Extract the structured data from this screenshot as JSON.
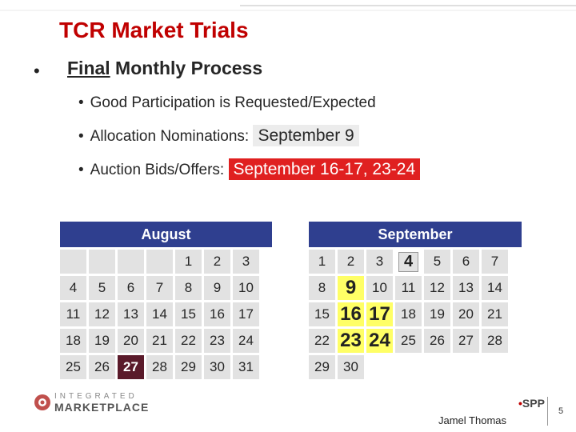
{
  "title": "TCR Market Trials",
  "heading": {
    "underlined": "Final",
    "rest": " Monthly Process"
  },
  "bullets": {
    "b1": "Good Participation is Requested/Expected",
    "b2_label": "Allocation Nominations:",
    "b2_value": "September 9",
    "b3_label": "Auction Bids/Offers:",
    "b3_value": "September 16-17, 23-24"
  },
  "august": {
    "title": "August",
    "rows": [
      [
        "",
        "",
        "",
        "",
        "1",
        "2",
        "3"
      ],
      [
        "4",
        "5",
        "6",
        "7",
        "8",
        "9",
        "10"
      ],
      [
        "11",
        "12",
        "13",
        "14",
        "15",
        "16",
        "17"
      ],
      [
        "18",
        "19",
        "20",
        "21",
        "22",
        "23",
        "24"
      ],
      [
        "25",
        "26",
        "27",
        "28",
        "29",
        "30",
        "31"
      ]
    ]
  },
  "september": {
    "title": "September",
    "rows": [
      [
        "1",
        "2",
        "3",
        "4",
        "5",
        "6",
        "7"
      ],
      [
        "8",
        "9",
        "10",
        "11",
        "12",
        "13",
        "14"
      ],
      [
        "15",
        "16",
        "17",
        "18",
        "19",
        "20",
        "21"
      ],
      [
        "22",
        "23",
        "24",
        "25",
        "26",
        "27",
        "28"
      ],
      [
        "29",
        "30",
        "",
        "",
        "",
        "",
        ""
      ]
    ]
  },
  "footer": {
    "logo_top": "INTEGRATED",
    "logo_bottom": "MARKETPLACE",
    "spp": "SPP",
    "presenter": "Jamel Thomas",
    "page": "5"
  },
  "colors": {
    "title": "#c00000",
    "calendar_header": "#2f3f8f",
    "highlight_red": "#e02020",
    "highlight_yellow": "#ffff66"
  }
}
